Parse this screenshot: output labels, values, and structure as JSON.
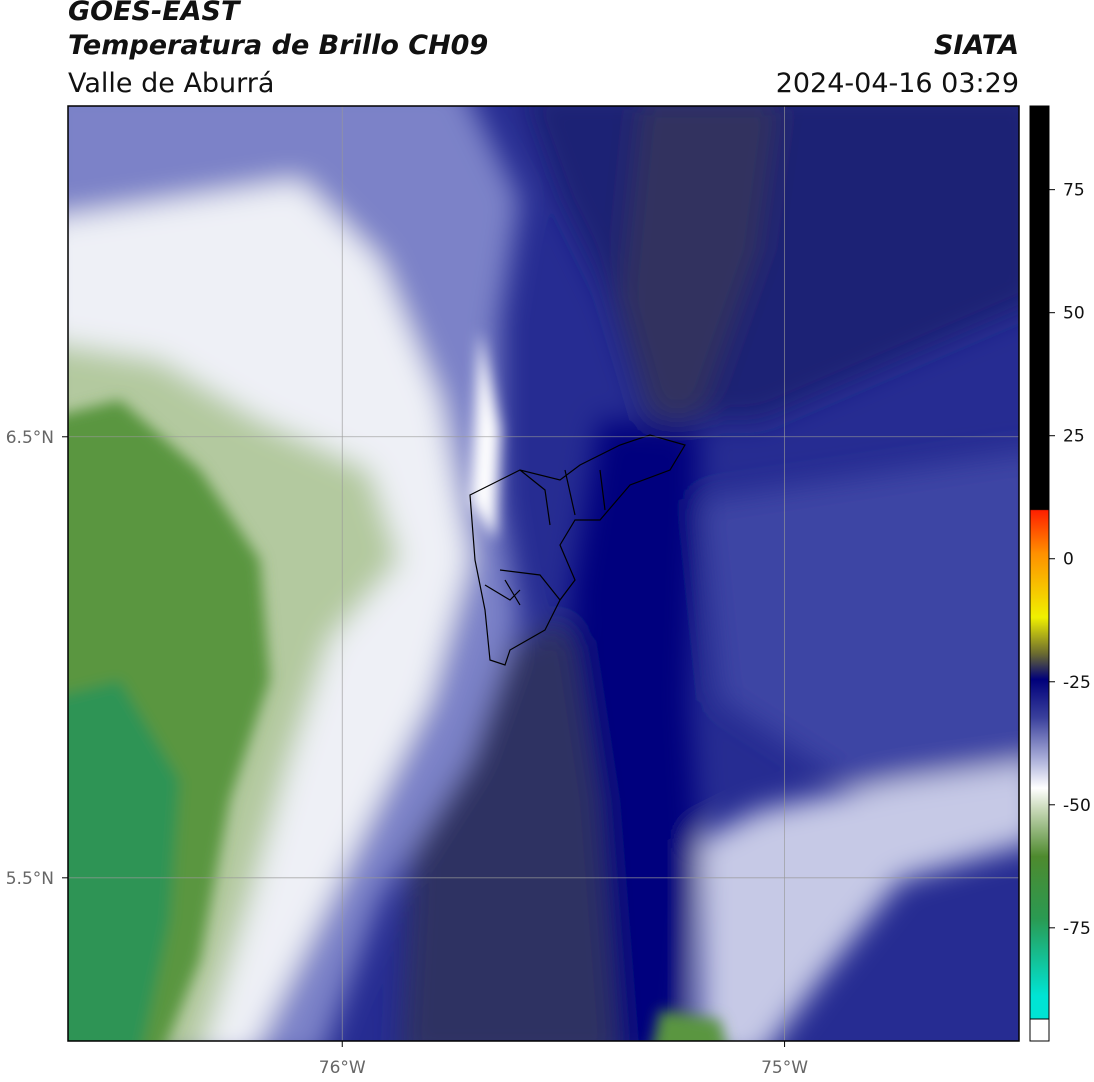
{
  "header": {
    "title": "GOES-EAST",
    "subtitle": "Temperatura de Brillo CH09",
    "region": "Valle de Aburrá",
    "source": "SIATA",
    "timestamp": "2024-04-16 03:29"
  },
  "map": {
    "xlim": [
      -76.62,
      -74.47
    ],
    "ylim": [
      5.13,
      7.25
    ],
    "xticks": [
      {
        "value": -76,
        "label": "76°W"
      },
      {
        "value": -75,
        "label": "75°W"
      }
    ],
    "yticks": [
      {
        "value": 6.5,
        "label": "6.5°N"
      },
      {
        "value": 5.5,
        "label": "5.5°N"
      }
    ],
    "grid": true
  },
  "colorbar": {
    "vlim": [
      -98,
      92
    ],
    "ticks": [
      75,
      50,
      25,
      0,
      -25,
      -50,
      -75
    ]
  }
}
